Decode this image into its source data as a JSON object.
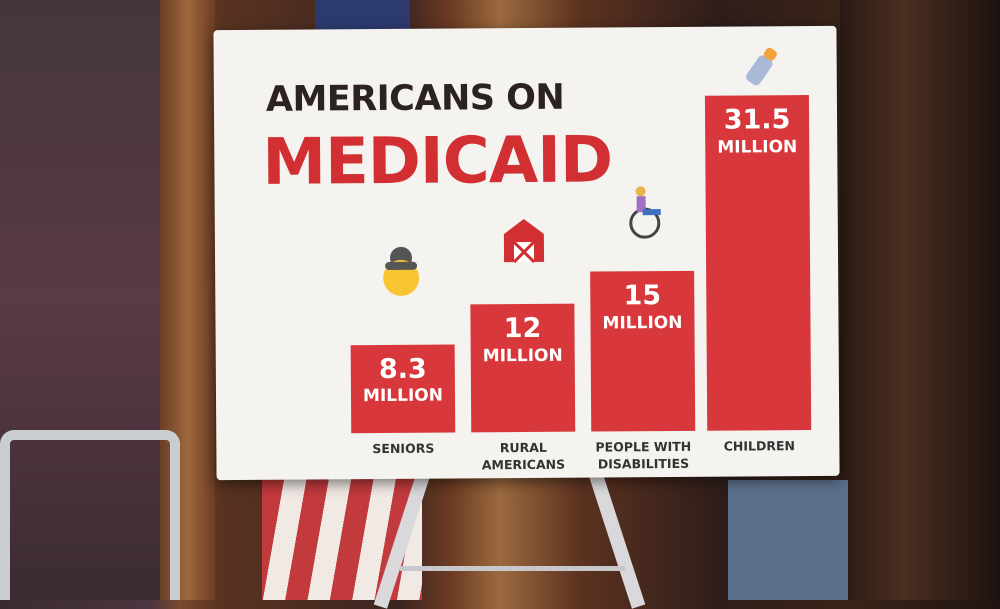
{
  "chart_data": {
    "type": "bar",
    "title": "AMERICANS ON",
    "title_emphasis": "MEDICAID",
    "categories": [
      "SENIORS",
      "RURAL\nAMERICANS",
      "PEOPLE WITH\nDISABILITIES",
      "CHILDREN"
    ],
    "values": [
      8.3,
      12,
      15,
      31.5
    ],
    "value_labels": [
      "8.3\nMILLION",
      "12\nMILLION",
      "15\nMILLION",
      "31.5\nMILLION"
    ],
    "color": "#d8383b"
  }
}
